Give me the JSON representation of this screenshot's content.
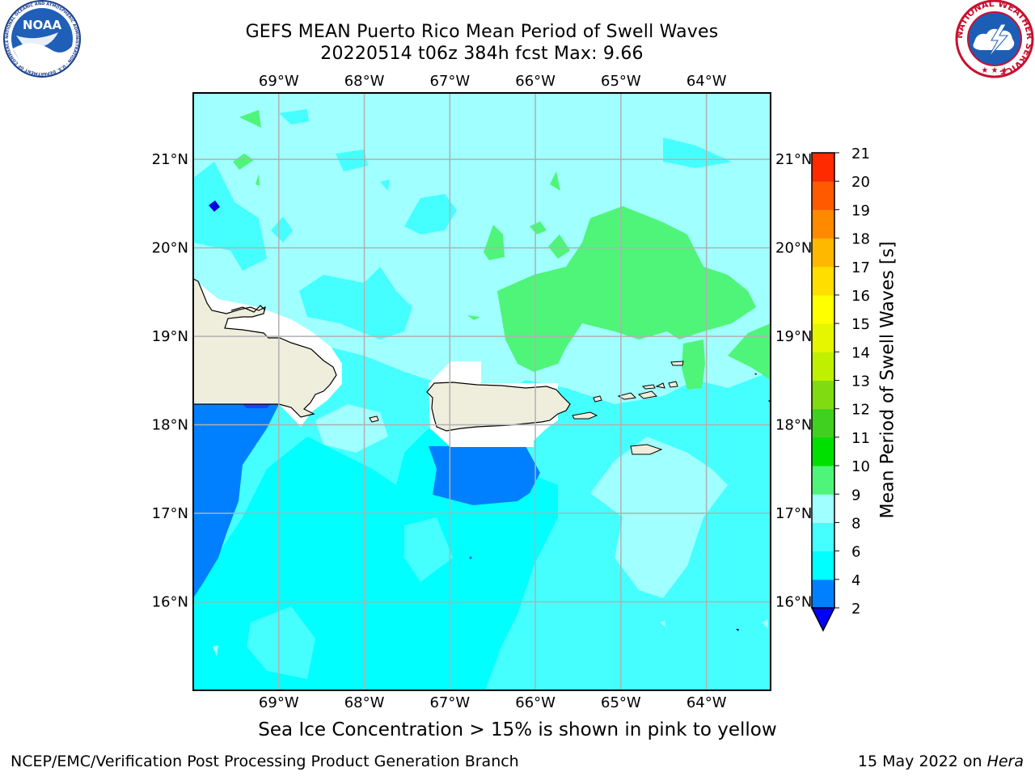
{
  "title": {
    "line1": "GEFS MEAN Puerto Rico Mean Period of Swell Waves",
    "line2": "20220514 t06z 384h fcst   Max: 9.66"
  },
  "subtitle": "Sea Ice Concentration > 15% is shown in pink to yellow",
  "footer": {
    "left": "NCEP/EMC/Verification Post Processing Product Generation Branch",
    "right_prefix": "15 May 2022 on ",
    "right_machine": "Hera"
  },
  "logos": {
    "left": {
      "name": "noaa-logo",
      "text": "NOAA",
      "ring": "NATIONAL OCEANIC AND ATMOSPHERIC ADMINISTRATION · U.S. DEPARTMENT OF COMMERCE"
    },
    "right": {
      "name": "nws-logo",
      "ring": "NATIONAL WEATHER SERVICE"
    }
  },
  "map": {
    "lon_range": [
      -70.0,
      -63.25
    ],
    "lat_range": [
      15.0,
      21.75
    ],
    "lon_ticks": [
      {
        "value": -69,
        "label": "69°W"
      },
      {
        "value": -68,
        "label": "68°W"
      },
      {
        "value": -67,
        "label": "67°W"
      },
      {
        "value": -66,
        "label": "66°W"
      },
      {
        "value": -65,
        "label": "65°W"
      },
      {
        "value": -64,
        "label": "64°W"
      }
    ],
    "lat_ticks": [
      {
        "value": 21,
        "label": "21°N"
      },
      {
        "value": 20,
        "label": "20°N"
      },
      {
        "value": 19,
        "label": "19°N"
      },
      {
        "value": 18,
        "label": "18°N"
      },
      {
        "value": 17,
        "label": "17°N"
      },
      {
        "value": 16,
        "label": "16°N"
      }
    ],
    "gridlines": true,
    "max_value": 9.66,
    "colors": {
      "c2_4": "#0080ff",
      "c4_6": "#00ffff",
      "c6_8": "#45ffff",
      "c8_9": "#a0ffff",
      "c9_10": "#4ef578",
      "land": "#efeedd",
      "no_data": "#ffffff",
      "grid": "#b0b0b0"
    }
  },
  "colorbar": {
    "label": "Mean Period of Swell Waves [s]",
    "ticks": [
      "2",
      "4",
      "6",
      "8",
      "9",
      "10",
      "11",
      "12",
      "13",
      "14",
      "15",
      "16",
      "17",
      "18",
      "19",
      "20",
      "21"
    ],
    "levels": [
      2,
      4,
      6,
      8,
      9,
      10,
      11,
      12,
      13,
      14,
      15,
      16,
      17,
      18,
      19,
      20,
      21
    ],
    "colors": [
      "#0080ff",
      "#00ffff",
      "#45ffff",
      "#a0ffff",
      "#4ef578",
      "#00e000",
      "#40d020",
      "#80dc10",
      "#c0f000",
      "#e6f500",
      "#ffff00",
      "#ffde00",
      "#ffb800",
      "#ff8a00",
      "#ff5a00",
      "#ff2a00"
    ],
    "under_color": "#0000ff"
  }
}
